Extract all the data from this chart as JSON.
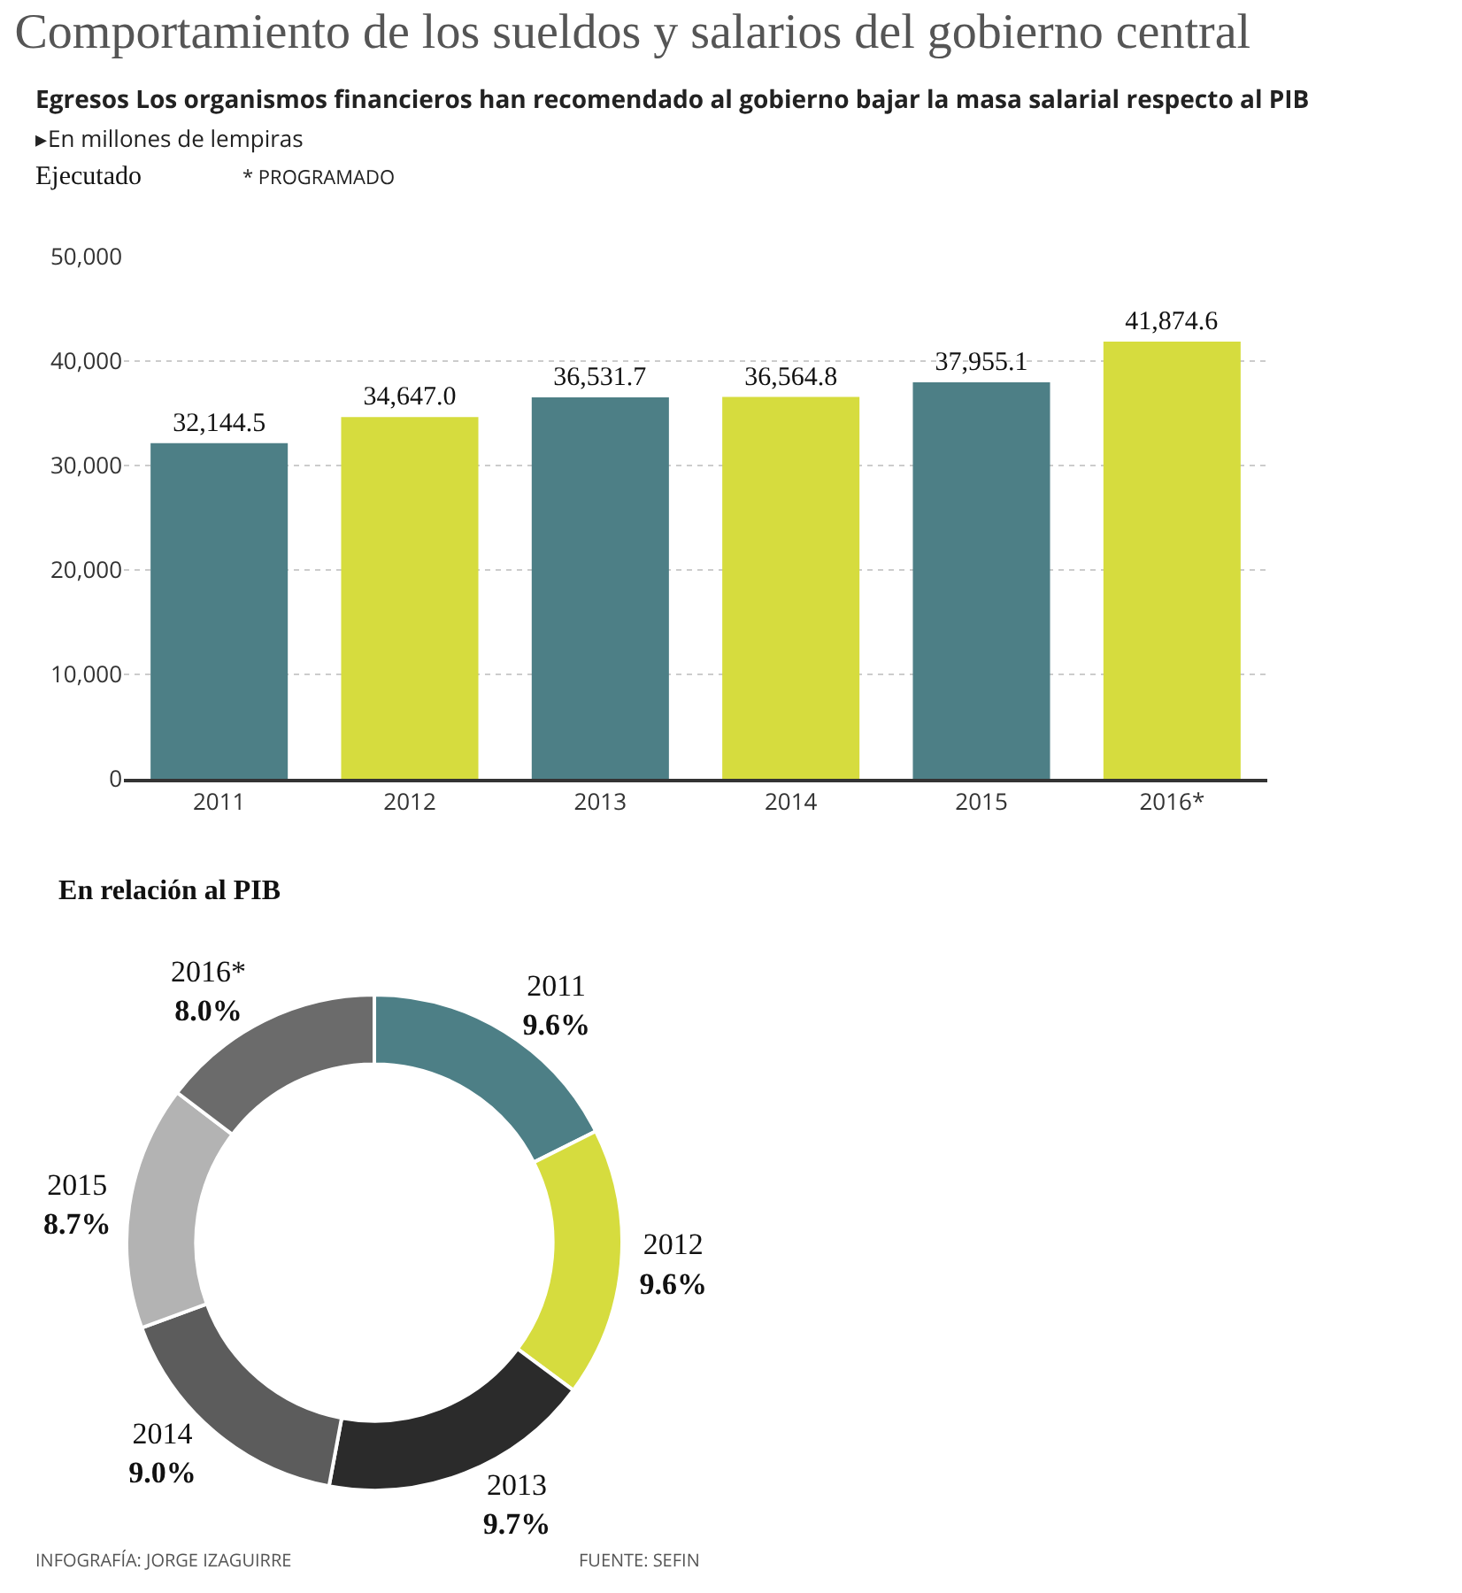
{
  "chart_data": [
    {
      "type": "bar",
      "title": "Comportamiento de los sueldos y salarios del gobierno central",
      "subtitle": "Egresos Los organismos financieros han recomendado al gobierno bajar la masa salarial respecto al PIB",
      "annotations": [
        "▸En millones de lempiras",
        "Ejecutado",
        "* PROGRAMADO"
      ],
      "categories": [
        "2011",
        "2012",
        "2013",
        "2014",
        "2015",
        "2016*"
      ],
      "values": [
        32144.5,
        34647.0,
        36531.7,
        36564.8,
        37955.1,
        41874.6
      ],
      "colors": [
        "#4d7f86",
        "#d6dc3e",
        "#4d7f86",
        "#d6dc3e",
        "#4d7f86",
        "#d6dc3e"
      ],
      "value_labels": [
        "32,144.5",
        "34,647.0",
        "36,531.7",
        "36,564.8",
        "37,955.1",
        "41,874.6"
      ],
      "ylim": [
        0,
        50000
      ],
      "yticks": [
        0,
        {
          "value": 10000,
          "label": "10,000"
        },
        {
          "value": 20000,
          "label": "20,000"
        },
        {
          "value": 30000,
          "label": "30,000"
        },
        {
          "value": 40000,
          "label": "40,000"
        },
        {
          "value": 50000,
          "label": "50,000"
        }
      ],
      "grid": "y"
    },
    {
      "type": "donut",
      "title": "En relación al PIB",
      "annotations": [
        "INFOGRAFÍA: JORGE IZAGUIRRE",
        "FUENTE: SEFIN"
      ],
      "categories": [
        "2011",
        "2012",
        "2013",
        "2014",
        "2015",
        "2016*"
      ],
      "values": [
        9.6,
        9.6,
        9.7,
        9.0,
        8.7,
        8.0
      ],
      "value_labels": [
        "9.6%",
        "9.6%",
        "9.7%",
        "9.0%",
        "8.7%",
        "8.0%"
      ],
      "colors": [
        "#4d7f86",
        "#d6dc3e",
        "#2b2b2b",
        "#5c5c5c",
        "#b3b3b3",
        "#6b6b6b"
      ]
    }
  ]
}
